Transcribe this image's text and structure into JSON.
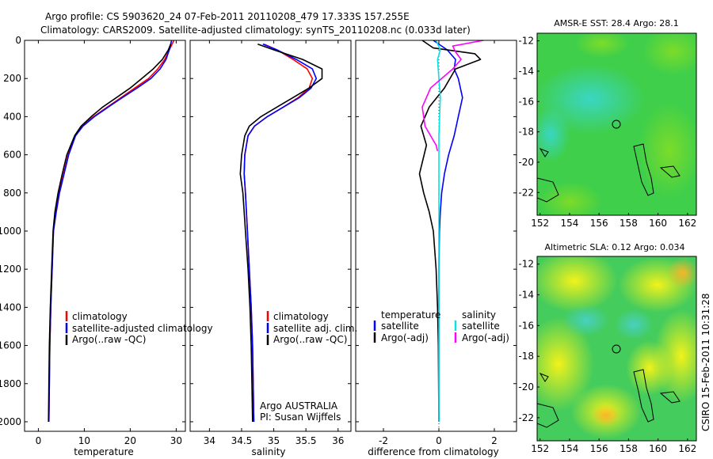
{
  "header": {
    "title_line1": "Argo profile: CS 5903620_24 07-Feb-2011 20110208_479 17.333S 157.255E",
    "title_line2": "Climatology: CARS2009. Satellite-adjusted climatology: synTS_20110208.nc (0.033d later)"
  },
  "side_label": "CSIRO 15-Feb-2011 10:31:28",
  "colors": {
    "climatology": "#ff0000",
    "satellite": "#0000ff",
    "argo": "#000000",
    "sal_satellite": "#00e5e5",
    "sal_argo": "#ff00ff"
  },
  "chart_data": [
    {
      "type": "line",
      "id": "temperature",
      "xlabel": "temperature",
      "ylabel": "",
      "xlim": [
        -3,
        32
      ],
      "ylim": [
        2050,
        0
      ],
      "xticks": [
        0,
        10,
        20,
        30
      ],
      "yticks": [
        0,
        200,
        400,
        600,
        800,
        1000,
        1200,
        1400,
        1600,
        1800,
        2000
      ],
      "legend": {
        "position": "lower-right",
        "entries": [
          "climatology",
          "satellite-adjusted climatology",
          "Argo(..raw -QC)"
        ]
      },
      "series": [
        {
          "name": "climatology",
          "color": "#ff0000",
          "x": [
            29.5,
            28.5,
            27.5,
            26.0,
            24.0,
            21.0,
            18.0,
            15.0,
            12.0,
            9.5,
            8.0,
            6.5,
            5.5,
            4.5,
            3.8,
            3.3,
            3.0,
            2.7,
            2.5,
            2.4,
            2.3
          ],
          "y": [
            0,
            50,
            100,
            150,
            200,
            250,
            300,
            350,
            400,
            450,
            500,
            600,
            700,
            800,
            900,
            1000,
            1200,
            1400,
            1600,
            1800,
            2000
          ]
        },
        {
          "name": "satellite-adjusted climatology",
          "color": "#0000ff",
          "x": [
            29.0,
            28.5,
            27.8,
            26.5,
            24.5,
            21.5,
            18.3,
            15.2,
            12.2,
            9.7,
            8.1,
            6.6,
            5.6,
            4.6,
            3.9,
            3.3,
            3.0,
            2.7,
            2.5,
            2.4,
            2.3
          ],
          "y": [
            0,
            50,
            100,
            150,
            200,
            250,
            300,
            350,
            400,
            450,
            500,
            600,
            700,
            800,
            900,
            1000,
            1200,
            1400,
            1600,
            1800,
            2000
          ]
        },
        {
          "name": "Argo(..raw -QC)",
          "color": "#000000",
          "x": [
            28.8,
            28.3,
            27.0,
            25.0,
            22.5,
            20.0,
            17.0,
            14.0,
            11.5,
            9.3,
            7.9,
            6.2,
            5.2,
            4.3,
            3.6,
            3.2,
            2.9,
            2.6,
            2.4,
            2.3,
            2.2
          ],
          "y": [
            20,
            50,
            100,
            150,
            200,
            250,
            300,
            350,
            400,
            450,
            500,
            600,
            700,
            800,
            900,
            1000,
            1200,
            1400,
            1600,
            1800,
            2000
          ]
        }
      ]
    },
    {
      "type": "line",
      "id": "salinity",
      "xlabel": "salinity",
      "ylabel": "",
      "xlim": [
        33.7,
        36.2
      ],
      "ylim": [
        2050,
        0
      ],
      "xticks": [
        34,
        34.5,
        35,
        35.5,
        36
      ],
      "yticks": [
        0,
        200,
        400,
        600,
        800,
        1000,
        1200,
        1400,
        1600,
        1800,
        2000
      ],
      "legend": {
        "position": "lower-right",
        "entries": [
          "climatology",
          "satellite adj. clim.",
          "Argo(..raw -QC)"
        ]
      },
      "annotation": [
        "Argo AUSTRALIA",
        "PI: Susan Wijffels"
      ],
      "series": [
        {
          "name": "climatology",
          "color": "#ff0000",
          "x": [
            34.85,
            35.05,
            35.3,
            35.52,
            35.6,
            35.55,
            35.38,
            35.15,
            34.9,
            34.7,
            34.6,
            34.55,
            34.54,
            34.56,
            34.59,
            34.62,
            34.65,
            34.67,
            34.68,
            34.69
          ],
          "y": [
            20,
            50,
            100,
            150,
            200,
            250,
            300,
            350,
            400,
            450,
            500,
            600,
            700,
            800,
            1000,
            1200,
            1400,
            1600,
            1800,
            2000
          ]
        },
        {
          "name": "satellite adj. clim.",
          "color": "#0000ff",
          "x": [
            34.83,
            35.05,
            35.35,
            35.6,
            35.66,
            35.58,
            35.4,
            35.15,
            34.9,
            34.7,
            34.6,
            34.55,
            34.54,
            34.56,
            34.59,
            34.62,
            34.65,
            34.67,
            34.68,
            34.69
          ],
          "y": [
            20,
            50,
            100,
            150,
            200,
            250,
            300,
            350,
            400,
            450,
            500,
            600,
            700,
            800,
            1000,
            1200,
            1400,
            1600,
            1800,
            2000
          ]
        },
        {
          "name": "Argo(..raw -QC)",
          "color": "#000000",
          "x": [
            34.75,
            35.0,
            35.45,
            35.75,
            35.75,
            35.55,
            35.3,
            35.05,
            34.8,
            34.62,
            34.55,
            34.5,
            34.48,
            34.52,
            34.56,
            34.6,
            34.63,
            34.65,
            34.66,
            34.67
          ],
          "y": [
            20,
            50,
            100,
            150,
            200,
            250,
            300,
            350,
            400,
            450,
            500,
            600,
            700,
            800,
            1000,
            1200,
            1400,
            1600,
            1800,
            2000
          ]
        }
      ]
    },
    {
      "type": "line",
      "id": "difference",
      "xlabel": "difference from climatology",
      "ylabel": "",
      "xlim": [
        -3,
        2.8
      ],
      "ylim": [
        2050,
        0
      ],
      "xticks": [
        -2,
        0,
        2
      ],
      "yticks": [
        0,
        200,
        400,
        600,
        800,
        1000,
        1200,
        1400,
        1600,
        1800,
        2000
      ],
      "legend": {
        "position": "lower-center",
        "col1_heading": "temperature",
        "col2_heading": "salinity",
        "entries": [
          "satellite",
          "Argo(-adj)",
          "satellite",
          "Argo(-adj)"
        ]
      },
      "series": [
        {
          "name": "temperature satellite",
          "color": "#0000ff",
          "x": [
            -0.2,
            0.3,
            0.6,
            0.55,
            0.7,
            0.85,
            0.7,
            0.55,
            0.35,
            0.2,
            0.1,
            0.05,
            0.02,
            0.0,
            0.0,
            0.0,
            0.0,
            0.0
          ],
          "y": [
            0,
            50,
            100,
            150,
            200,
            300,
            400,
            500,
            600,
            700,
            800,
            900,
            1000,
            1200,
            1400,
            1600,
            1800,
            2000
          ]
        },
        {
          "name": "temperature Argo(-adj)",
          "color": "#000000",
          "x": [
            -0.6,
            -0.2,
            1.3,
            1.5,
            0.6,
            0.2,
            -0.35,
            -0.65,
            -0.45,
            -0.7,
            -0.55,
            -0.35,
            -0.2,
            -0.1,
            -0.05,
            -0.02,
            0.0
          ],
          "y": [
            0,
            40,
            70,
            100,
            150,
            250,
            350,
            450,
            550,
            700,
            800,
            900,
            1000,
            1200,
            1400,
            1600,
            2000
          ]
        },
        {
          "name": "salinity satellite",
          "color": "#00e5e5",
          "x": [
            -0.1,
            0.05,
            -0.05,
            0.0,
            0.05,
            0.0,
            0.0,
            0.0,
            0.0,
            0.0
          ],
          "y": [
            0,
            50,
            100,
            200,
            300,
            500,
            800,
            1200,
            1600,
            2000
          ]
        },
        {
          "name": "salinity Argo(-adj)",
          "color": "#ff00ff",
          "x": [
            1.6,
            0.5,
            0.6,
            0.8,
            0.5,
            -0.3,
            -0.6,
            -0.5,
            -0.1,
            -0.05
          ],
          "y": [
            0,
            30,
            60,
            100,
            150,
            250,
            350,
            450,
            550,
            580
          ]
        }
      ]
    },
    {
      "type": "heatmap",
      "id": "amsr",
      "title": "AMSR-E SST: 28.4  Argo: 28.1",
      "xlim": [
        151.8,
        162.6
      ],
      "ylim": [
        -23.5,
        -11.5
      ],
      "xticks": [
        152,
        154,
        156,
        158,
        160,
        162
      ],
      "yticks": [
        -12,
        -14,
        -16,
        -18,
        -20,
        -22
      ],
      "marker": {
        "lon": 157.255,
        "lat": -17.333
      }
    },
    {
      "type": "heatmap",
      "id": "sla",
      "title": "Altimetric SLA: 0.12  Argo: 0.034",
      "xlim": [
        151.8,
        162.6
      ],
      "ylim": [
        -23.5,
        -11.5
      ],
      "xticks": [
        152,
        154,
        156,
        158,
        160,
        162
      ],
      "yticks": [
        -12,
        -14,
        -16,
        -18,
        -20,
        -22
      ],
      "marker": {
        "lon": 157.255,
        "lat": -17.333
      }
    }
  ]
}
